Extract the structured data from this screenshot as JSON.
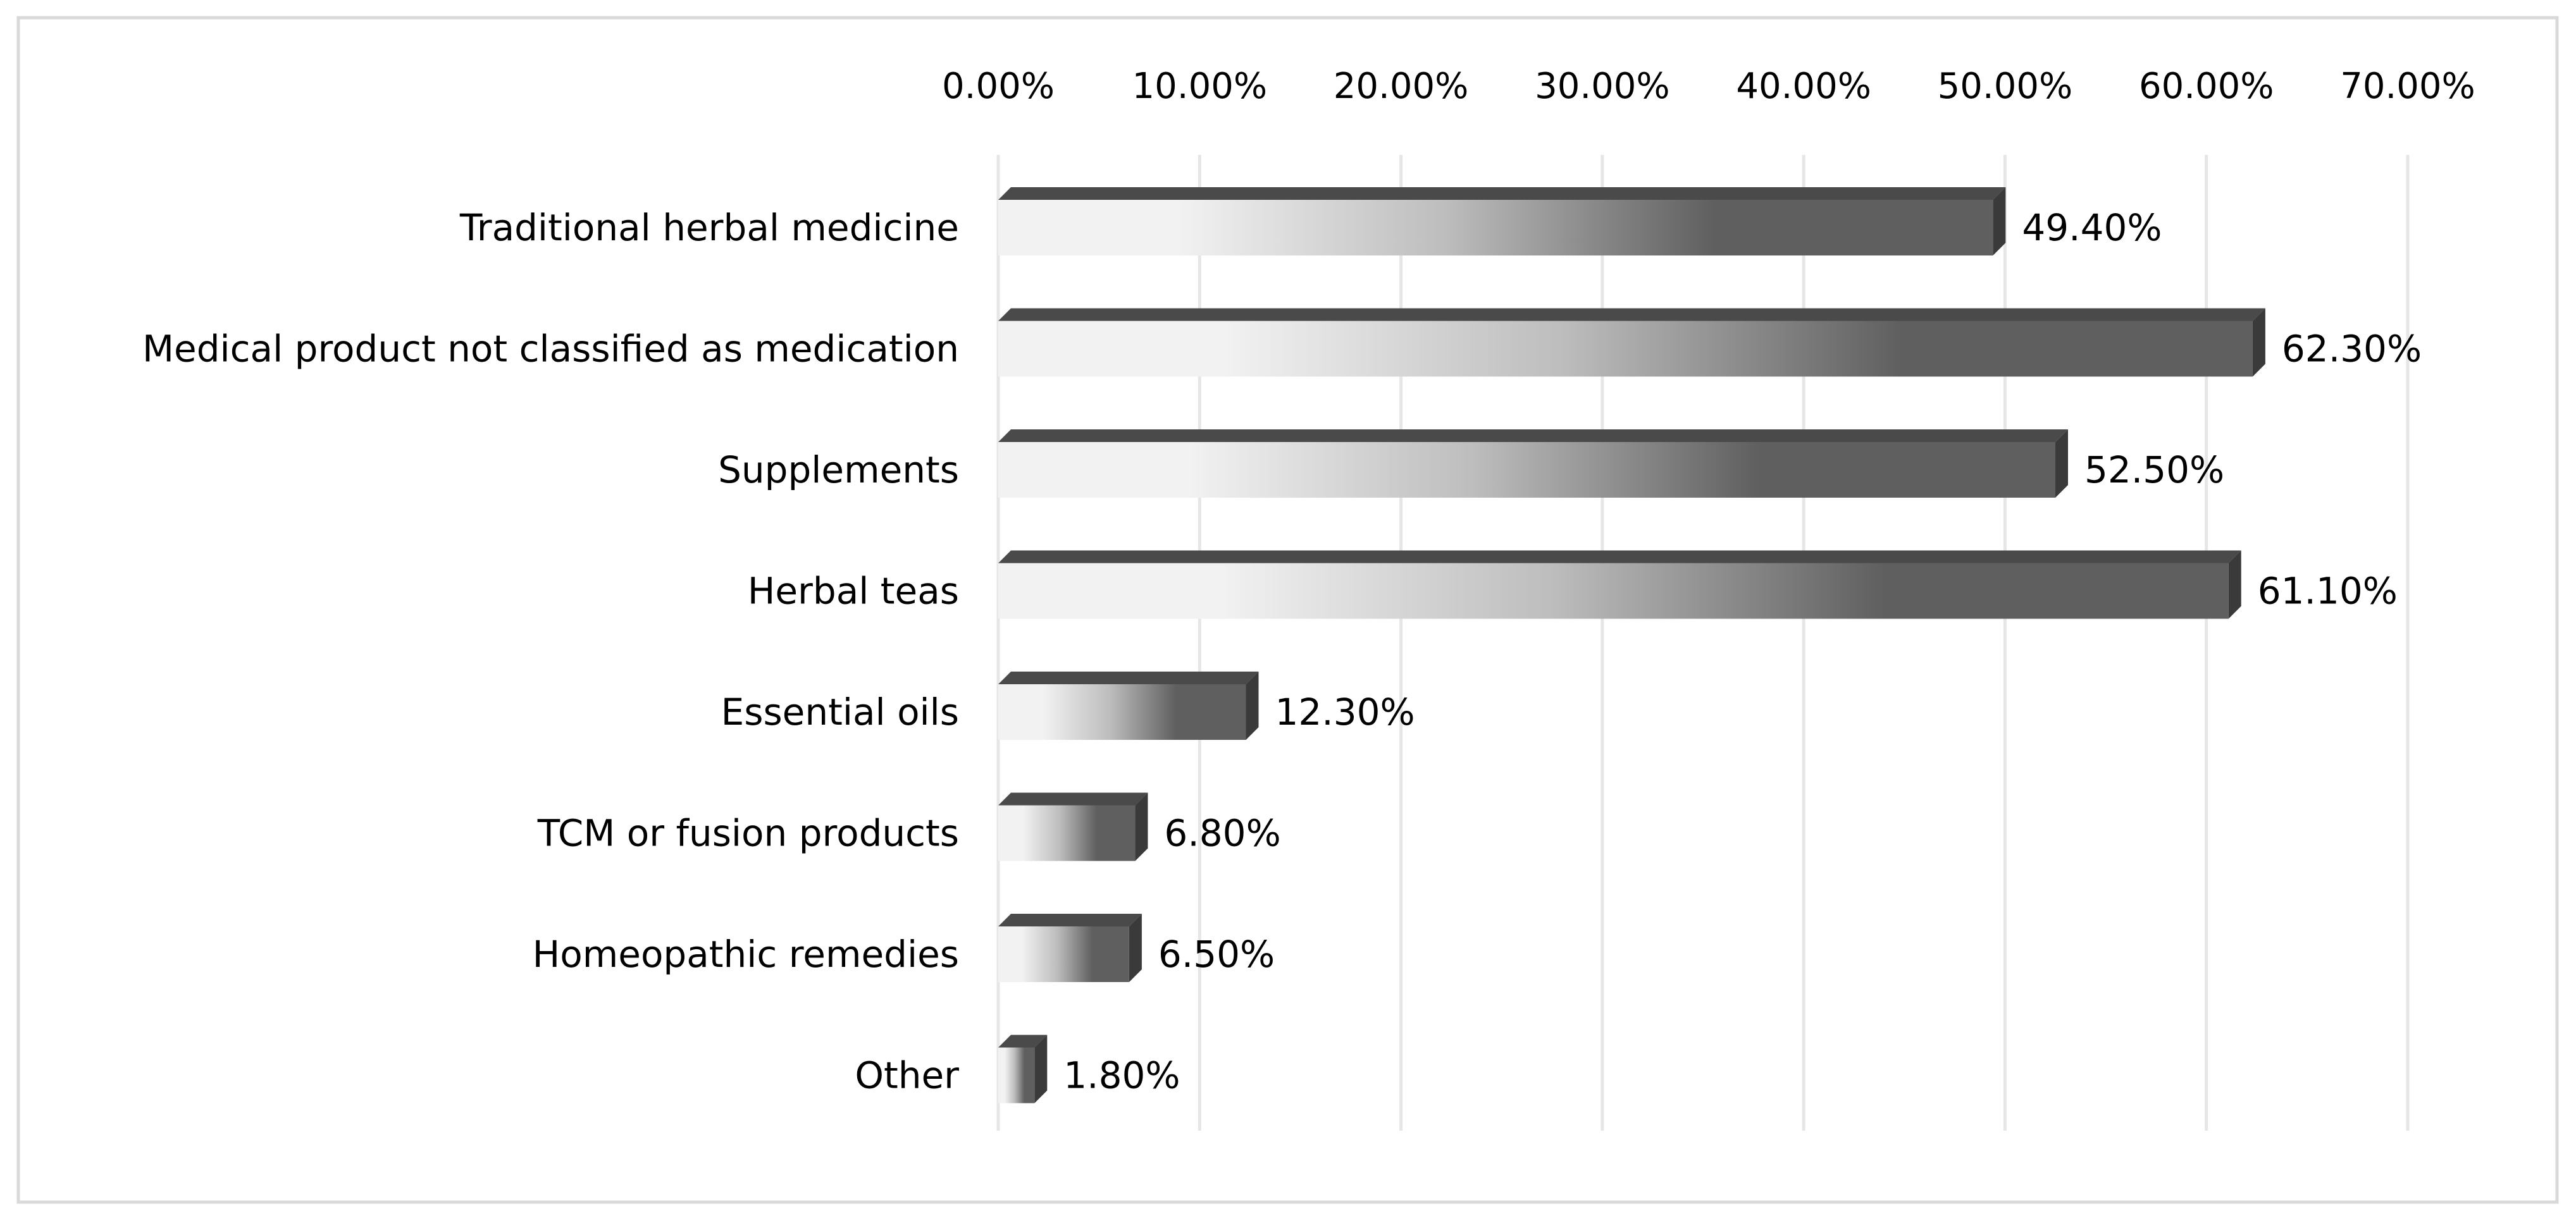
{
  "colors": {
    "background": "#ffffff",
    "border": "#d9d9d9",
    "gridline": "#e6e6e6",
    "bar_dark": "#5f5f5f",
    "bar_top": "#4a4a4a",
    "bar_side": "#3a3a3a",
    "bar_light": "#f2f2f2"
  },
  "chart_data": {
    "type": "bar",
    "orientation": "horizontal",
    "style": "3d-gradient",
    "title": "",
    "xlabel": "",
    "ylabel": "",
    "xlim": [
      0,
      70
    ],
    "ticks": [
      0,
      10,
      20,
      30,
      40,
      50,
      60,
      70
    ],
    "tick_labels": [
      "0.00%",
      "10.00%",
      "20.00%",
      "30.00%",
      "40.00%",
      "50.00%",
      "60.00%",
      "70.00%"
    ],
    "axis_position": "top",
    "grid": true,
    "legend": "none",
    "categories": [
      "Traditional herbal medicine",
      "Medical product not classified as medication",
      "Supplements",
      "Herbal teas",
      "Essential oils",
      "TCM or fusion products",
      "Homeopathic remedies",
      "Other"
    ],
    "values": [
      49.4,
      62.3,
      52.5,
      61.1,
      12.3,
      6.8,
      6.5,
      1.8
    ],
    "data_labels": [
      "49.40%",
      "62.30%",
      "52.50%",
      "61.10%",
      "12.30%",
      "6.80%",
      "6.50%",
      "1.80%"
    ]
  }
}
